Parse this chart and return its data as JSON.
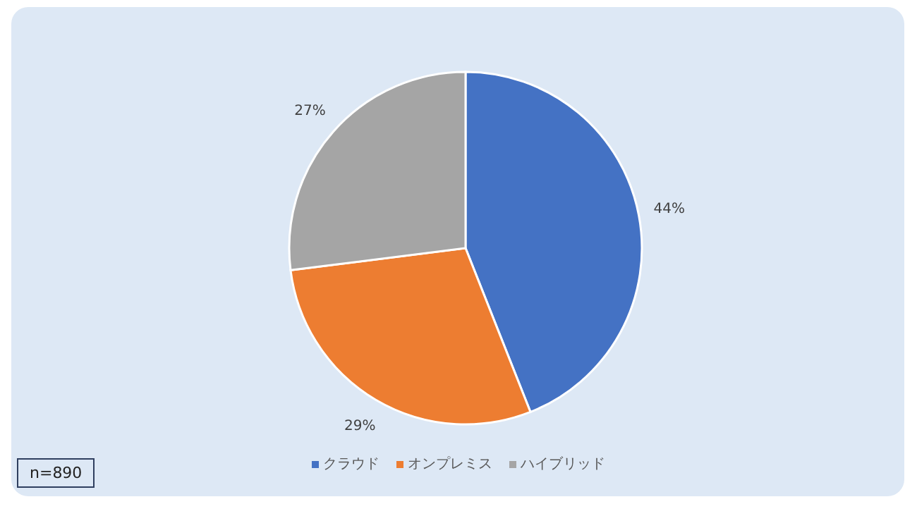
{
  "chart_data": {
    "type": "pie",
    "categories": [
      "クラウド",
      "オンプレミス",
      "ハイブリッド"
    ],
    "values": [
      44,
      29,
      27
    ],
    "colors": [
      "#4472c4",
      "#ed7d31",
      "#a5a5a5"
    ],
    "value_labels": [
      "44%",
      "29%",
      "27%"
    ],
    "legend": "bottom",
    "annotations": [
      "n=890"
    ]
  }
}
